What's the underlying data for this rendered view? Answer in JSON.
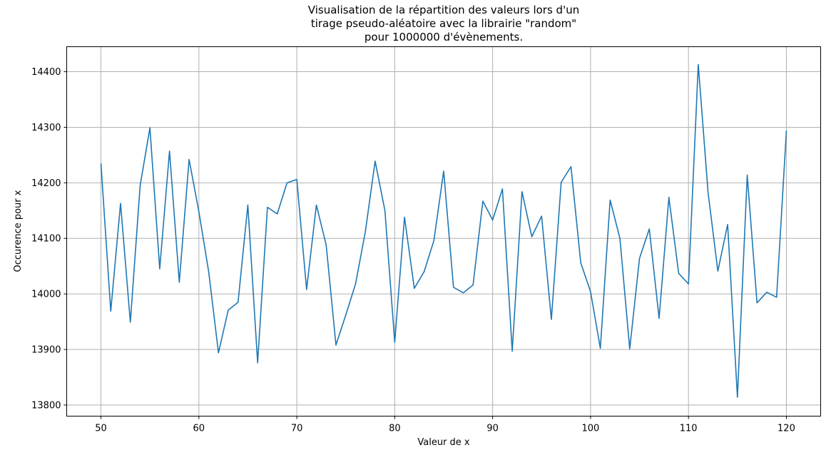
{
  "chart_data": {
    "type": "line",
    "title": [
      "Visualisation de la répartition des valeurs lors d'un",
      "tirage pseudo-aléatoire avec la librairie \"random\"",
      "pour 1000000 d'évènements."
    ],
    "xlabel": "Valeur de x",
    "ylabel": "Occurence pour x",
    "xlim": [
      46.5,
      123.5
    ],
    "ylim": [
      13780,
      14445
    ],
    "xticks": [
      50,
      60,
      70,
      80,
      90,
      100,
      110,
      120
    ],
    "yticks": [
      13800,
      13900,
      14000,
      14100,
      14200,
      14300,
      14400
    ],
    "grid": true,
    "color": "#1f77b4",
    "x": [
      50,
      51,
      52,
      53,
      54,
      55,
      56,
      57,
      58,
      59,
      60,
      61,
      62,
      63,
      64,
      65,
      66,
      67,
      68,
      69,
      70,
      71,
      72,
      73,
      74,
      75,
      76,
      77,
      78,
      79,
      80,
      81,
      82,
      83,
      84,
      85,
      86,
      87,
      88,
      89,
      90,
      91,
      92,
      93,
      94,
      95,
      96,
      97,
      98,
      99,
      100,
      101,
      102,
      103,
      104,
      105,
      106,
      107,
      108,
      109,
      110,
      111,
      112,
      113,
      114,
      115,
      116,
      117,
      118,
      119,
      120
    ],
    "y": [
      14234,
      13969,
      14163,
      13949,
      14195,
      14299,
      14045,
      14257,
      14021,
      14242,
      14148,
      14040,
      13894,
      13971,
      13985,
      14160,
      13876,
      14156,
      14144,
      14200,
      14206,
      14008,
      14160,
      14088,
      13908,
      13962,
      14018,
      14112,
      14239,
      14150,
      13913,
      14138,
      14010,
      14040,
      14096,
      14221,
      14012,
      14002,
      14016,
      14167,
      14133,
      14189,
      13897,
      14184,
      14103,
      14140,
      13954,
      14201,
      14229,
      14056,
      14004,
      13902,
      14169,
      14100,
      13901,
      14064,
      14117,
      13956,
      14174,
      14037,
      14018,
      14413,
      14183,
      14041,
      14125,
      13814,
      14214,
      13984,
      14003,
      13994,
      14293
    ]
  }
}
